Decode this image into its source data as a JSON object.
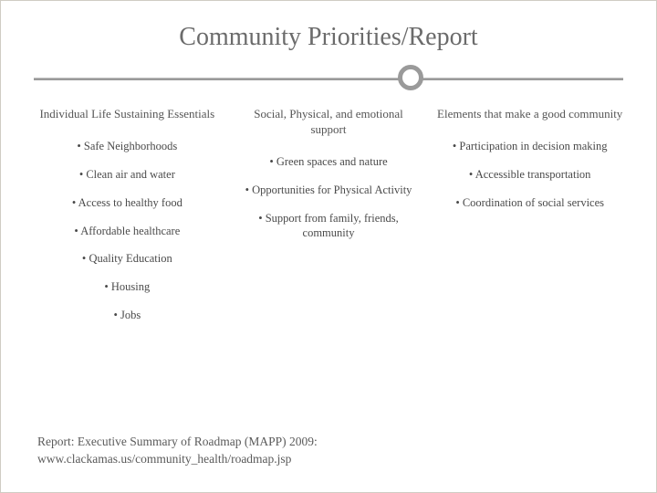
{
  "title": "Community Priorities/Report",
  "columns": [
    {
      "header": "Individual Life Sustaining Essentials",
      "items": [
        "Safe Neighborhoods",
        "Clean air and water",
        "Access to healthy food",
        "Affordable healthcare",
        "Quality Education",
        "Housing",
        "Jobs"
      ]
    },
    {
      "header": "Social, Physical, and emotional support",
      "items": [
        "Green spaces and nature",
        "Opportunities for Physical Activity",
        "Support from family, friends, community"
      ]
    },
    {
      "header": "Elements that make a good community",
      "items": [
        "Participation in decision making",
        "Accessible transportation",
        "Coordination of social services"
      ]
    }
  ],
  "footer_line1": "Report: Executive Summary of Roadmap (MAPP) 2009:",
  "footer_line2": "www.clackamas.us/community_health/roadmap.jsp",
  "styling": {
    "slide_width": 720,
    "slide_height": 540,
    "background_color": "#ffffff",
    "border_color": "#d0ccc4",
    "title_color": "#6b6b6b",
    "title_fontsize": 28,
    "divider_line_color": "#9a9a9a",
    "circle_border_color": "#9a9a9a",
    "circle_position_pct": 64,
    "body_text_color": "#4a4a4a",
    "body_fontsize": 12.5,
    "header_fontsize": 13,
    "footer_fontsize": 13.5,
    "font_family": "Georgia, serif"
  }
}
